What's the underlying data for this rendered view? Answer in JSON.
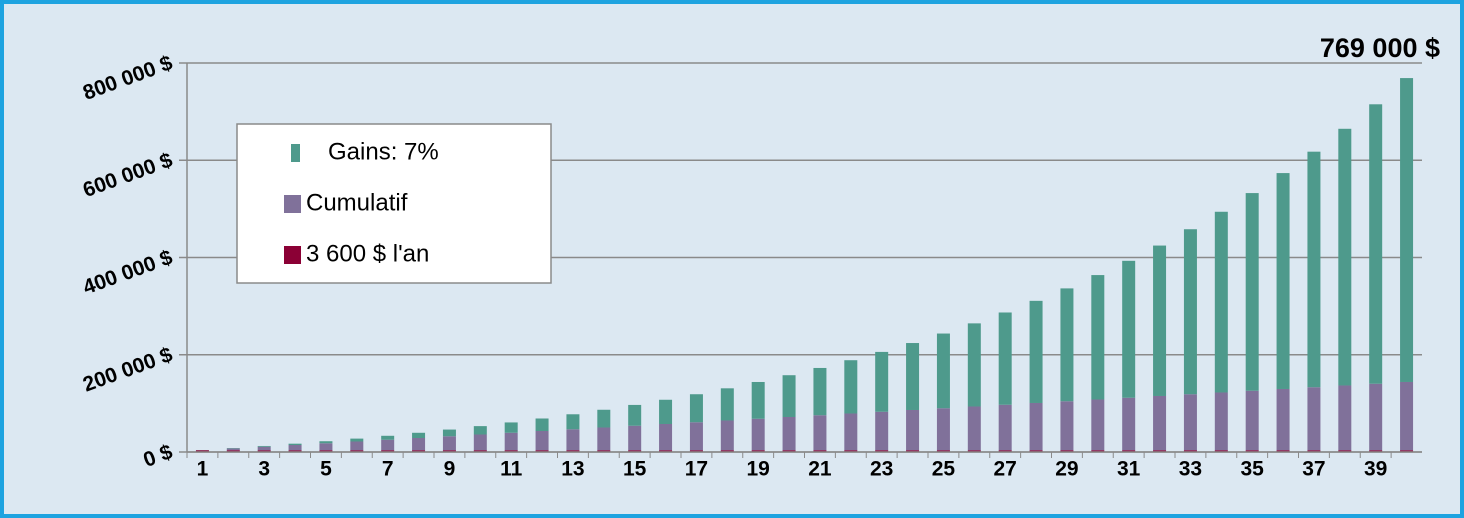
{
  "chart_data": {
    "type": "stacked_bar",
    "annotation": "769 000 $",
    "categories": [
      1,
      null,
      3,
      null,
      5,
      null,
      7,
      null,
      9,
      null,
      11,
      null,
      13,
      null,
      15,
      null,
      17,
      null,
      19,
      null,
      21,
      null,
      23,
      null,
      25,
      null,
      27,
      null,
      29,
      null,
      31,
      null,
      33,
      null,
      35,
      null,
      37,
      null,
      39,
      null
    ],
    "series": [
      {
        "name": "3 600 $ l'an",
        "color": "#8b0035",
        "values": [
          3600,
          3600,
          3600,
          3600,
          3600,
          3600,
          3600,
          3600,
          3600,
          3600,
          3600,
          3600,
          3600,
          3600,
          3600,
          3600,
          3600,
          3600,
          3600,
          3600,
          3600,
          3600,
          3600,
          3600,
          3600,
          3600,
          3600,
          3600,
          3600,
          3600,
          3600,
          3600,
          3600,
          3600,
          3600,
          3600,
          3600,
          3600,
          3600,
          3600
        ]
      },
      {
        "name": "Cumulatif",
        "color": "#80719a",
        "values": [
          0,
          3600,
          7200,
          10800,
          14400,
          18000,
          21600,
          25200,
          28800,
          32400,
          36000,
          39600,
          43200,
          46800,
          50400,
          54000,
          57600,
          61200,
          64800,
          68400,
          72000,
          75600,
          79200,
          82800,
          86400,
          90000,
          93600,
          97200,
          100800,
          104400,
          108000,
          111600,
          115200,
          118800,
          122400,
          126000,
          129600,
          133200,
          136800,
          140400
        ]
      },
      {
        "name": "Gains: 7%",
        "color": "#4e9a8c",
        "values": [
          252,
          774,
          1584,
          2703,
          4152,
          5954,
          8135,
          10721,
          13739,
          17221,
          21198,
          25706,
          30782,
          36465,
          42797,
          49825,
          57597,
          66164,
          75584,
          85915,
          97221,
          109570,
          123036,
          137697,
          153635,
          170942,
          189712,
          210048,
          232059,
          255863,
          281586,
          309360,
          339332,
          371653,
          406489,
          444015,
          484420,
          527905,
          574687,
          624995
        ]
      }
    ],
    "ylim": [
      0,
      800000
    ],
    "yticks": [
      {
        "value": 0,
        "label": "0 $"
      },
      {
        "value": 200000,
        "label": "200 000 $"
      },
      {
        "value": 400000,
        "label": "400 000 $"
      },
      {
        "value": 600000,
        "label": "600 000 $"
      },
      {
        "value": 800000,
        "label": "800 000 $"
      }
    ],
    "grid": true
  }
}
